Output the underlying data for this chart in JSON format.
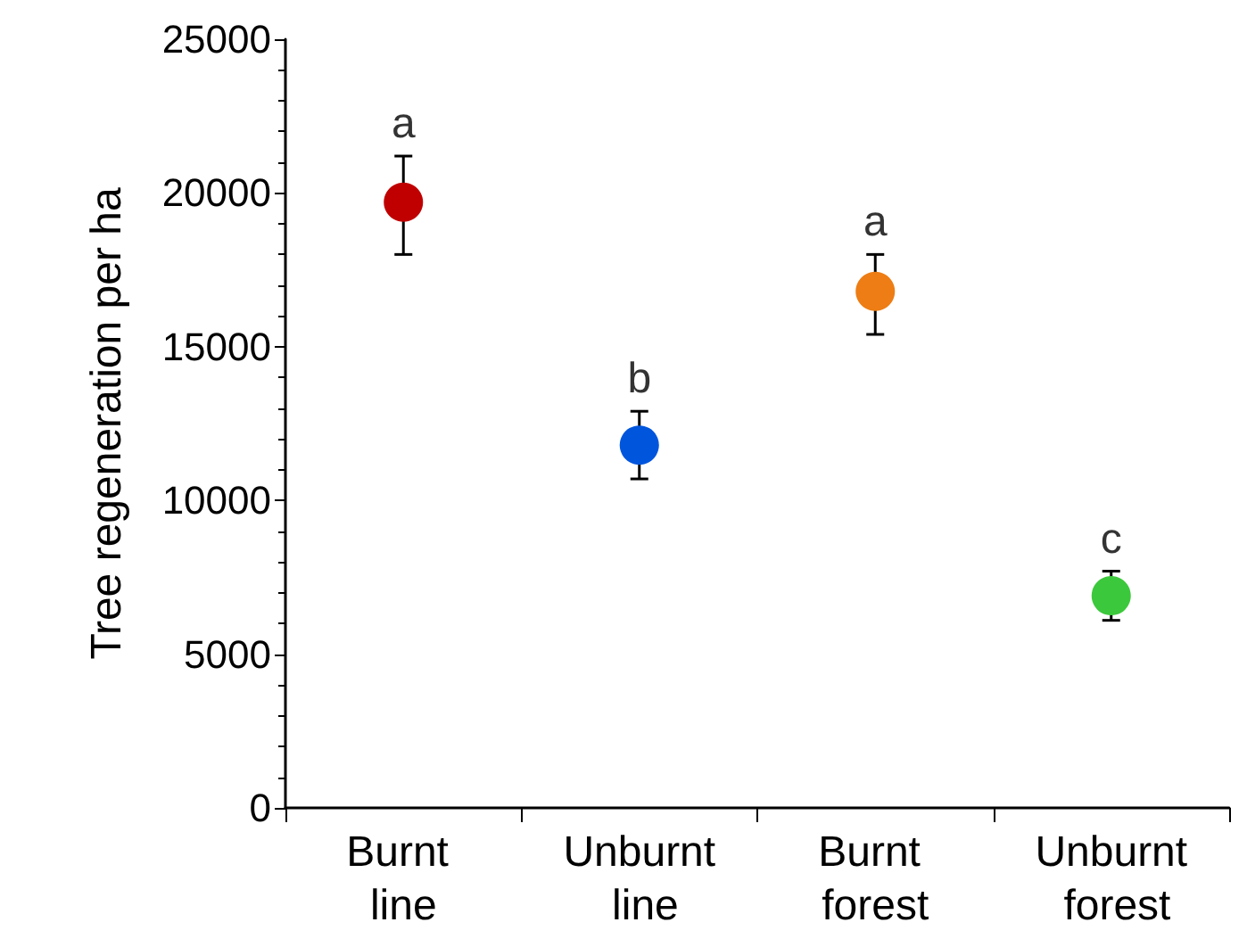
{
  "chart_data": {
    "type": "scatter",
    "ylabel": "Tree regeneration per ha",
    "categories": [
      "Burnt line",
      "Unburnt line",
      "Burnt forest",
      "Unburnt forest"
    ],
    "values": [
      19700,
      11800,
      16800,
      6900
    ],
    "colors": [
      "#c00000",
      "#0055dd",
      "#ed7d14",
      "#3cc83c"
    ],
    "errors": [
      [
        18000,
        21200
      ],
      [
        10700,
        12900
      ],
      [
        15400,
        18000
      ],
      [
        6100,
        7700
      ]
    ],
    "ylim": [
      0,
      25000
    ],
    "yticks": [
      0,
      5000,
      10000,
      15000,
      20000,
      25000
    ],
    "annotations": [
      {
        "text": "a",
        "x": "Burnt line",
        "y": 21200
      },
      {
        "text": "b",
        "x": "Unburnt line",
        "y": 12900
      },
      {
        "text": "a",
        "x": "Burnt forest",
        "y": 18000
      },
      {
        "text": "c",
        "x": "Unburnt forest",
        "y": 7700
      }
    ],
    "marker": "circle"
  }
}
